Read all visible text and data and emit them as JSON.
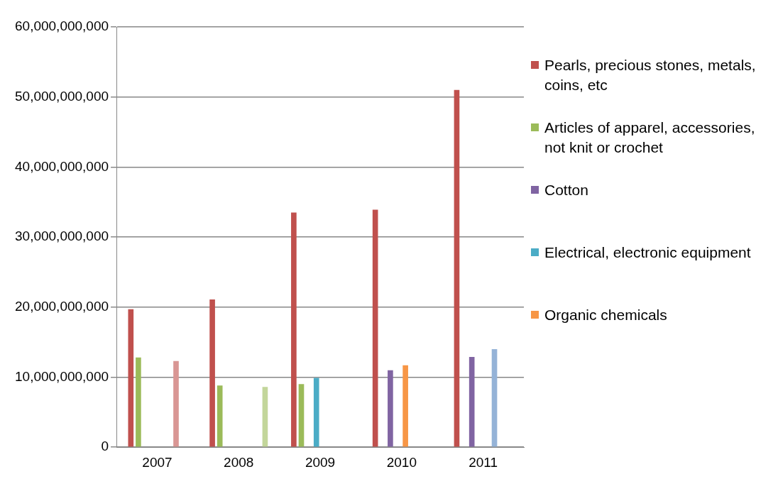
{
  "chart_data": {
    "type": "bar",
    "categories": [
      "2007",
      "2008",
      "2009",
      "2010",
      "2011"
    ],
    "series": [
      {
        "name": "Pearls, precious stones, metals, coins, etc",
        "color": "#c0504d",
        "values": [
          19700000000,
          21100000000,
          33500000000,
          33900000000,
          51000000000
        ]
      },
      {
        "name": "Articles of apparel, accessories, not knit or crochet",
        "color": "#9bbb59",
        "values": [
          12800000000,
          8800000000,
          9000000000,
          null,
          null
        ]
      },
      {
        "name": "Cotton",
        "color": "#8064a2",
        "values": [
          null,
          null,
          null,
          11000000000,
          12900000000
        ]
      },
      {
        "name": "Electrical, electronic equipment",
        "color": "#4bacc6",
        "values": [
          null,
          null,
          9900000000,
          null,
          null
        ]
      },
      {
        "name": "Organic chemicals",
        "color": "#f79646",
        "values": [
          null,
          null,
          null,
          11700000000,
          null
        ]
      },
      {
        "color": "#95b3d7",
        "values": [
          null,
          null,
          null,
          null,
          14000000000
        ]
      },
      {
        "color": "#d99694",
        "values": [
          12300000000,
          null,
          null,
          null,
          null
        ]
      },
      {
        "color": "#c3d69b",
        "values": [
          null,
          8600000000,
          null,
          null,
          null
        ]
      }
    ],
    "ylim": [
      0,
      60000000000
    ],
    "yticks": [
      {
        "value": 0,
        "label": "0"
      },
      {
        "value": 10000000000,
        "label": "10,000,000,000"
      },
      {
        "value": 20000000000,
        "label": "20,000,000,000"
      },
      {
        "value": 30000000000,
        "label": "30,000,000,000"
      },
      {
        "value": 40000000000,
        "label": "40,000,000,000"
      },
      {
        "value": 50000000000,
        "label": "50,000,000,000"
      },
      {
        "value": 60000000000,
        "label": "60,000,000,000"
      }
    ],
    "grid": "y",
    "legend": "right"
  }
}
